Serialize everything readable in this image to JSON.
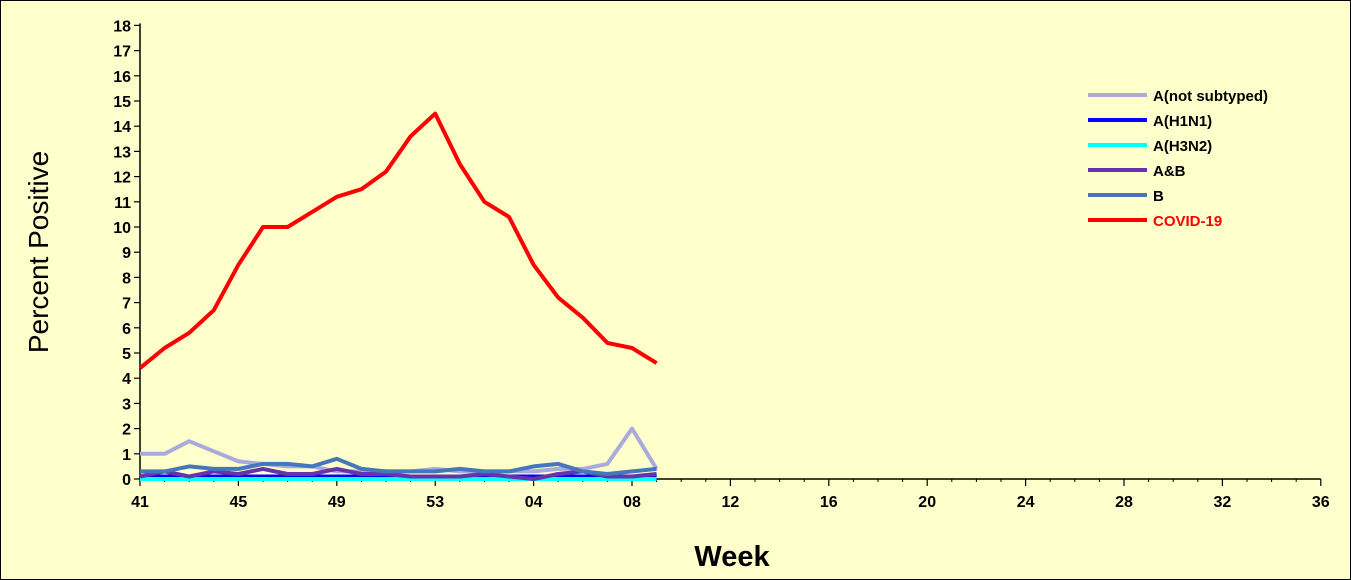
{
  "chart_data": {
    "type": "line",
    "title": "",
    "xlabel": "Week",
    "ylabel": "Percent Positive",
    "ylim": [
      0,
      18
    ],
    "yticks": [
      0,
      1,
      2,
      3,
      4,
      5,
      6,
      7,
      8,
      9,
      10,
      11,
      12,
      13,
      14,
      15,
      16,
      17,
      18
    ],
    "xtick_labels": [
      "41",
      "45",
      "49",
      "53",
      "04",
      "08",
      "12",
      "16",
      "20",
      "24",
      "28",
      "32",
      "36"
    ],
    "x": [
      "41",
      "42",
      "43",
      "44",
      "45",
      "46",
      "47",
      "48",
      "49",
      "50",
      "51",
      "52",
      "53",
      "01",
      "02",
      "03",
      "04",
      "05",
      "06",
      "07",
      "08",
      "09"
    ],
    "grid": false,
    "legend_position": "top-right",
    "series": [
      {
        "name": "A(not subtyped)",
        "color": "#AAAADD",
        "values": [
          1.0,
          1.0,
          1.5,
          1.1,
          0.7,
          0.6,
          0.5,
          0.5,
          0.3,
          0.3,
          0.3,
          0.3,
          0.4,
          0.3,
          0.3,
          0.3,
          0.3,
          0.4,
          0.4,
          0.6,
          2.0,
          0.4
        ]
      },
      {
        "name": "A(H1N1)",
        "color": "#0000FF",
        "values": [
          0.1,
          0.1,
          0.1,
          0.1,
          0.1,
          0.1,
          0.1,
          0.1,
          0.1,
          0.1,
          0.1,
          0.1,
          0.1,
          0.1,
          0.1,
          0.1,
          0.1,
          0.1,
          0.1,
          0.1,
          0.1,
          0.1
        ]
      },
      {
        "name": "A(H3N2)",
        "color": "#00FFFF",
        "values": [
          0.0,
          0.0,
          0.0,
          0.0,
          0.0,
          0.0,
          0.0,
          0.0,
          0.0,
          0.0,
          0.0,
          0.0,
          0.0,
          0.0,
          0.0,
          0.0,
          0.0,
          0.0,
          0.0,
          0.0,
          0.0,
          0.0
        ]
      },
      {
        "name": "A&B",
        "color": "#6633AA",
        "values": [
          0.1,
          0.3,
          0.1,
          0.3,
          0.2,
          0.4,
          0.2,
          0.2,
          0.4,
          0.2,
          0.2,
          0.1,
          0.1,
          0.1,
          0.2,
          0.1,
          0.0,
          0.2,
          0.3,
          0.1,
          0.1,
          0.2
        ]
      },
      {
        "name": "B",
        "color": "#4477BB",
        "values": [
          0.3,
          0.3,
          0.5,
          0.4,
          0.4,
          0.6,
          0.6,
          0.5,
          0.8,
          0.4,
          0.3,
          0.3,
          0.3,
          0.4,
          0.3,
          0.3,
          0.5,
          0.6,
          0.3,
          0.2,
          0.3,
          0.4
        ]
      },
      {
        "name": "COVID-19",
        "color": "#FF0000",
        "values": [
          4.4,
          5.2,
          5.8,
          6.7,
          8.5,
          10.0,
          10.0,
          10.6,
          11.2,
          11.5,
          12.2,
          13.6,
          14.5,
          12.5,
          11.0,
          10.4,
          8.5,
          7.2,
          6.4,
          5.4,
          5.2,
          4.6
        ]
      }
    ]
  }
}
